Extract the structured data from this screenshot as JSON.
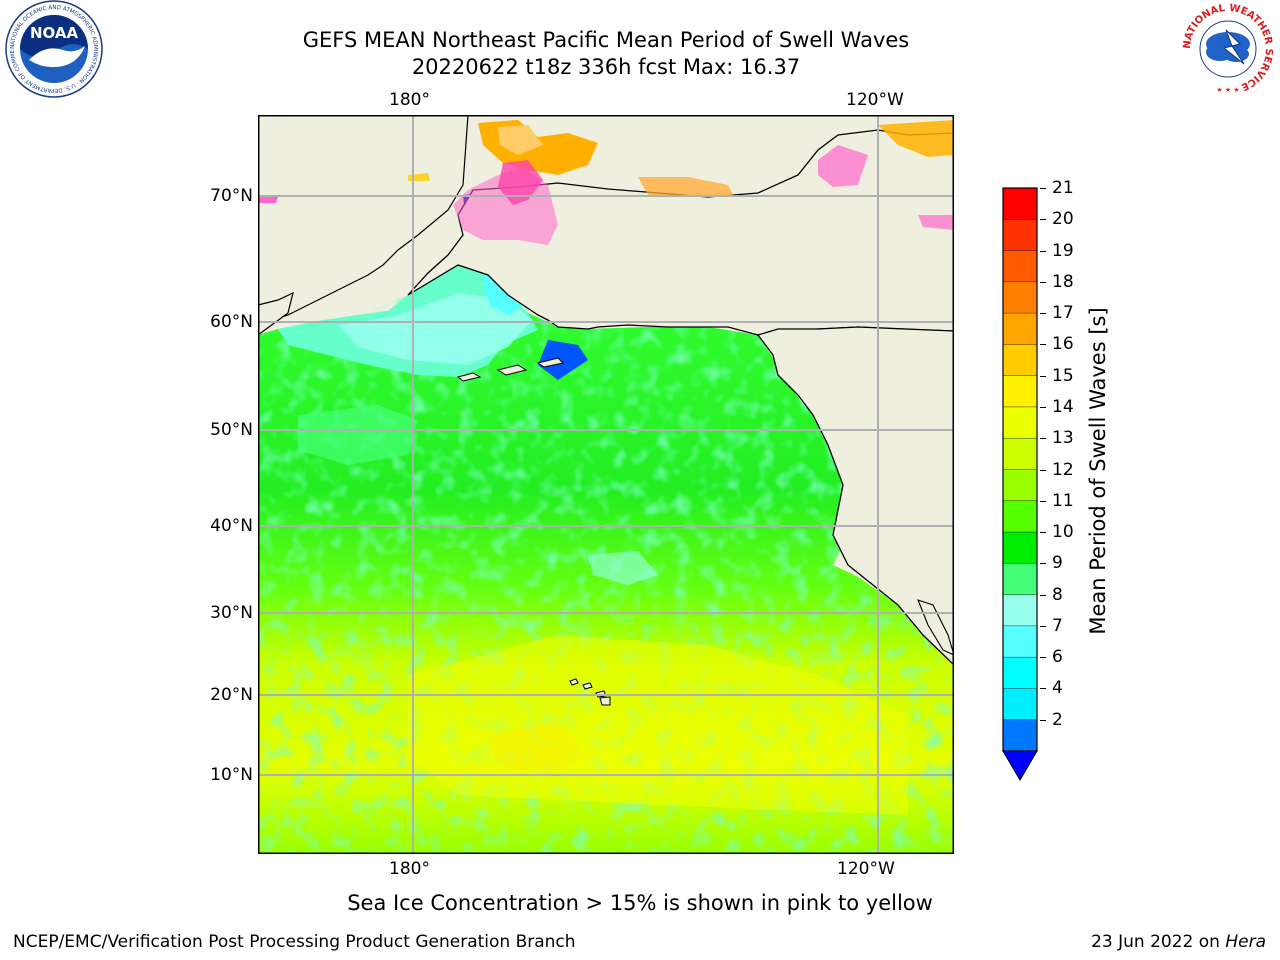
{
  "header": {
    "title_line1": "GEFS MEAN Northeast Pacific Mean Period of Swell Waves",
    "title_line2": "20220622 t18z 336h fcst   Max: 16.37"
  },
  "logos": {
    "noaa": "NOAA",
    "noaa_ring": "NATIONAL OCEANIC AND ATMOSPHERIC ADMINISTRATION · U.S. DEPARTMENT OF COMMERCE",
    "nws_ring": "NATIONAL WEATHER SERVICE"
  },
  "map": {
    "lon_labels": [
      "180°",
      "120°W"
    ],
    "lat_labels": [
      "70°N",
      "60°N",
      "50°N",
      "40°N",
      "30°N",
      "20°N",
      "10°N"
    ],
    "land_color": "#efefdf",
    "grid_color": "#b0b0b0"
  },
  "colorbar": {
    "label": "Mean Period of Swell Waves [s]",
    "ticks": [
      "21",
      "20",
      "19",
      "18",
      "17",
      "16",
      "15",
      "14",
      "13",
      "12",
      "11",
      "10",
      "9",
      "8",
      "7",
      "6",
      "4",
      "2"
    ],
    "colors_top_to_bottom": [
      "#ff0000",
      "#ff3300",
      "#ff5a00",
      "#ff8000",
      "#ffa500",
      "#ffcc00",
      "#fff200",
      "#eaff00",
      "#ccff00",
      "#99ff00",
      "#55ff00",
      "#00ee00",
      "#44ff77",
      "#99ffee",
      "#55ffff",
      "#00ffff",
      "#00eeff",
      "#0077ff"
    ],
    "extend_color": "#0000ff"
  },
  "caption": "Sea Ice Concentration > 15% is shown in pink to yellow",
  "footer": {
    "left": "NCEP/EMC/Verification Post Processing Product Generation Branch",
    "right_prefix": "23 Jun 2022 on ",
    "right_italic": "Hera"
  }
}
